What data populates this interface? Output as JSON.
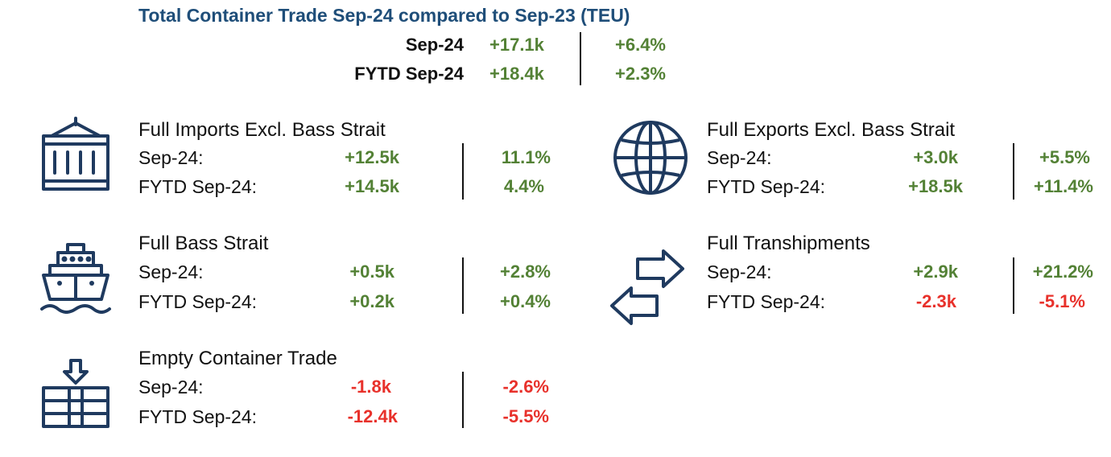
{
  "title": "Total Container Trade Sep-24 compared to Sep-23 (TEU)",
  "summary": [
    {
      "label": "Sep-24",
      "value": "+17.1k",
      "pct": "+6.4%"
    },
    {
      "label": "FYTD Sep-24",
      "value": "+18.4k",
      "pct": "+2.3%"
    }
  ],
  "sections": {
    "imports": {
      "title": "Full Imports Excl. Bass Strait",
      "icon": "container-crane-icon",
      "rows": [
        {
          "label": "Sep-24:",
          "value": "+12.5k",
          "pct": "11.1%"
        },
        {
          "label": "FYTD Sep-24:",
          "value": "+14.5k",
          "pct": "4.4%"
        }
      ]
    },
    "exports": {
      "title": "Full Exports Excl. Bass Strait",
      "icon": "globe-icon",
      "rows": [
        {
          "label": "Sep-24:",
          "value": "+3.0k",
          "pct": "+5.5%"
        },
        {
          "label": "FYTD Sep-24:",
          "value": "+18.5k",
          "pct": "+11.4%"
        }
      ]
    },
    "bass": {
      "title": "Full Bass Strait",
      "icon": "ship-icon",
      "rows": [
        {
          "label": "Sep-24:",
          "value": "+0.5k",
          "pct": "+2.8%"
        },
        {
          "label": "FYTD Sep-24:",
          "value": "+0.2k",
          "pct": "+0.4%"
        }
      ]
    },
    "tranship": {
      "title": "Full Transhipments",
      "icon": "exchange-arrows-icon",
      "rows": [
        {
          "label": "Sep-24:",
          "value": "+2.9k",
          "pct": "+21.2%"
        },
        {
          "label": "FYTD Sep-24:",
          "value": "-2.3k",
          "pct": "-5.1%"
        }
      ]
    },
    "empty": {
      "title": "Empty Container Trade",
      "icon": "container-stack-icon",
      "rows": [
        {
          "label": "Sep-24:",
          "value": "-1.8k",
          "pct": "-2.6%"
        },
        {
          "label": "FYTD Sep-24:",
          "value": "-12.4k",
          "pct": "-5.5%"
        }
      ]
    }
  },
  "colors": {
    "title": "#1f4e79",
    "positive": "#538135",
    "negative": "#e8312b",
    "icon": "#1f3a5f"
  }
}
